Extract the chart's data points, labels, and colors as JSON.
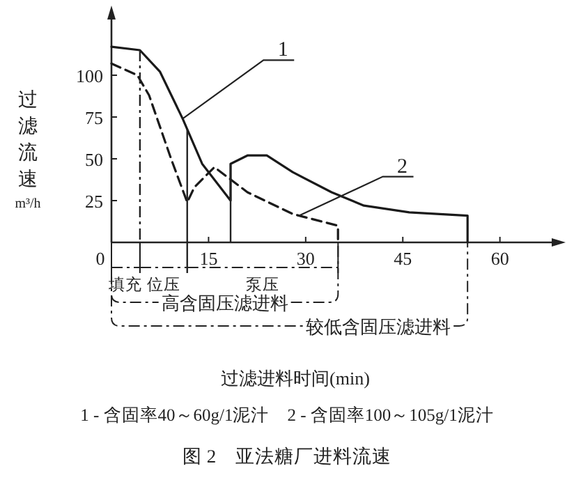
{
  "chart_data": {
    "type": "line",
    "title": "图 2　亚法糖厂进料流速",
    "ylabel": "过滤流速 m³/h",
    "xlim": [
      0,
      68
    ],
    "ylim": [
      0,
      135
    ],
    "xticks": [
      0,
      15,
      30,
      45,
      60
    ],
    "yticks": [
      25,
      50,
      75,
      100
    ],
    "grid": false,
    "marker": "none",
    "series": [
      {
        "color": "#1a1a1a",
        "line_style": "solid",
        "x": [
          0,
          4.4,
          7.5,
          11,
          14,
          18.4,
          18.4,
          21,
          24,
          28,
          34,
          39,
          46,
          55,
          55
        ],
        "values": [
          117,
          115,
          102,
          74,
          47,
          25,
          47,
          52,
          52,
          42,
          30,
          22,
          18,
          16,
          0
        ]
      },
      {
        "color": "#1a1a1a",
        "line_style": "dashed",
        "x": [
          0,
          4,
          5.8,
          9.2,
          11.7,
          12.8,
          15.9,
          21,
          28,
          35,
          35
        ],
        "values": [
          107,
          100,
          88,
          50,
          24,
          33,
          45,
          30,
          17,
          10,
          0
        ]
      }
    ],
    "ref_lines": [
      {
        "axis": "x",
        "value": 4.4,
        "line_style": "dashed"
      },
      {
        "axis": "x",
        "value": 11.7,
        "line_style": "solid"
      },
      {
        "axis": "x",
        "value": 18.4,
        "line_style": "solid"
      }
    ],
    "annotations": [
      {
        "text": "1",
        "x": 11,
        "y": 74
      },
      {
        "text": "2",
        "x": 29,
        "y": 16
      },
      "填充",
      "位压",
      "泵压",
      "高含固压滤进料",
      "较低含固压滤进料",
      "过滤进料时间(min)",
      "1 - 含固率40～60g/1泥汁　2 - 含固率100～105g/1泥汁"
    ]
  }
}
